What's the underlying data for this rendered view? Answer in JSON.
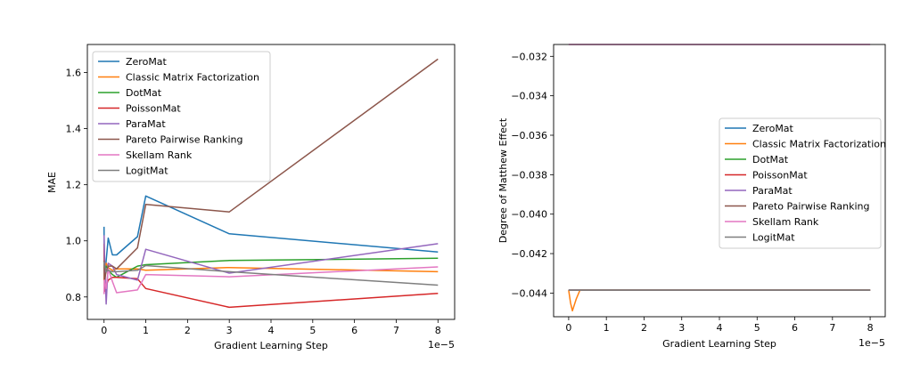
{
  "chart_data": [
    {
      "type": "line",
      "title": "",
      "xlabel": "Gradient Learning Step",
      "ylabel": "MAE",
      "x_offset_label": "1e−5",
      "xlim": [
        -0.4,
        8.4
      ],
      "ylim": [
        0.72,
        1.7
      ],
      "xticks": [
        0,
        1,
        2,
        3,
        4,
        5,
        6,
        7,
        8
      ],
      "yticks": [
        0.8,
        1.0,
        1.2,
        1.4,
        1.6
      ],
      "ytick_labels": [
        "0.8",
        "1.0",
        "1.2",
        "1.4",
        "1.6"
      ],
      "grid": false,
      "legend_position": "upper-left",
      "series": [
        {
          "name": "ZeroMat",
          "color": "#1f77b4",
          "x": [
            0,
            0.01,
            0.05,
            0.1,
            0.2,
            0.3,
            0.8,
            1,
            3,
            8
          ],
          "y": [
            1.05,
            0.84,
            0.93,
            1.01,
            0.95,
            0.95,
            1.015,
            1.16,
            1.025,
            0.96
          ]
        },
        {
          "name": "Classic Matrix Factorization",
          "color": "#ff7f0e",
          "x": [
            0,
            0.01,
            0.05,
            0.1,
            0.2,
            0.3,
            0.8,
            1,
            3,
            8
          ],
          "y": [
            0.86,
            0.89,
            0.92,
            0.905,
            0.895,
            0.9,
            0.9,
            0.895,
            0.905,
            0.89
          ]
        },
        {
          "name": "DotMat",
          "color": "#2ca02c",
          "x": [
            0,
            0.01,
            0.05,
            0.1,
            0.2,
            0.3,
            0.8,
            1,
            3,
            8
          ],
          "y": [
            0.915,
            0.9,
            0.91,
            0.895,
            0.88,
            0.87,
            0.91,
            0.915,
            0.93,
            0.938
          ]
        },
        {
          "name": "PoissonMat",
          "color": "#d62728",
          "x": [
            0,
            0.01,
            0.05,
            0.1,
            0.2,
            0.3,
            0.8,
            1,
            3,
            8
          ],
          "y": [
            0.99,
            0.82,
            0.84,
            0.86,
            0.87,
            0.87,
            0.865,
            0.83,
            0.763,
            0.813
          ]
        },
        {
          "name": "ParaMat",
          "color": "#9467bd",
          "x": [
            0,
            0.01,
            0.05,
            0.1,
            0.2,
            0.3,
            0.8,
            1,
            3,
            8
          ],
          "y": [
            1.02,
            0.95,
            0.775,
            0.92,
            0.91,
            0.88,
            0.86,
            0.97,
            0.885,
            0.99
          ]
        },
        {
          "name": "Pareto Pairwise Ranking",
          "color": "#8c564b",
          "x": [
            0,
            0.01,
            0.05,
            0.1,
            0.2,
            0.3,
            0.8,
            1,
            3,
            8
          ],
          "y": [
            0.93,
            0.86,
            0.89,
            0.91,
            0.91,
            0.9,
            0.975,
            1.13,
            1.103,
            1.648
          ]
        },
        {
          "name": "Skellam Rank",
          "color": "#e377c2",
          "x": [
            0,
            0.01,
            0.05,
            0.1,
            0.2,
            0.3,
            0.8,
            1,
            3,
            8
          ],
          "y": [
            0.81,
            0.86,
            0.83,
            0.9,
            0.855,
            0.815,
            0.825,
            0.88,
            0.872,
            0.907
          ]
        },
        {
          "name": "LogitMat",
          "color": "#7f7f7f",
          "x": [
            0,
            0.01,
            0.05,
            0.1,
            0.2,
            0.3,
            0.8,
            1,
            3,
            8
          ],
          "y": [
            0.925,
            0.91,
            0.89,
            0.895,
            0.89,
            0.89,
            0.895,
            0.912,
            0.89,
            0.842
          ]
        }
      ]
    },
    {
      "type": "line",
      "title": "",
      "xlabel": "Gradient Learning Step",
      "ylabel": "Degree of Matthew Effect",
      "x_offset_label": "1e−5",
      "xlim": [
        -0.4,
        8.4
      ],
      "ylim": [
        -0.0452,
        -0.0314
      ],
      "xticks": [
        0,
        1,
        2,
        3,
        4,
        5,
        6,
        7,
        8
      ],
      "yticks": [
        -0.044,
        -0.042,
        -0.04,
        -0.038,
        -0.036,
        -0.034,
        -0.032
      ],
      "ytick_labels": [
        "−0.044",
        "−0.042",
        "−0.040",
        "−0.038",
        "−0.036",
        "−0.034",
        "−0.032"
      ],
      "grid": false,
      "legend_position": "center-right",
      "series": [
        {
          "name": "ZeroMat",
          "color": "#1f77b4",
          "x": [
            0,
            0.01,
            0.05,
            0.1,
            0.2,
            0.3,
            0.8,
            1,
            3,
            8
          ],
          "y": [
            -0.04385,
            -0.04385,
            -0.04385,
            -0.04385,
            -0.04385,
            -0.04385,
            -0.04385,
            -0.04385,
            -0.04385,
            -0.04385
          ]
        },
        {
          "name": "Classic Matrix Factorization",
          "color": "#ff7f0e",
          "x": [
            0,
            0.05,
            0.1,
            0.2,
            0.3,
            0.8,
            1,
            3,
            8
          ],
          "y": [
            -0.04385,
            -0.0445,
            -0.0449,
            -0.0443,
            -0.04385,
            -0.04385,
            -0.04385,
            -0.04385,
            -0.04385
          ]
        },
        {
          "name": "DotMat",
          "color": "#2ca02c",
          "x": [
            0,
            0.01,
            0.05,
            0.1,
            0.2,
            0.3,
            0.8,
            1,
            3,
            8
          ],
          "y": [
            -0.04385,
            -0.04385,
            -0.04385,
            -0.04385,
            -0.04385,
            -0.04385,
            -0.04385,
            -0.04385,
            -0.04385,
            -0.04385
          ]
        },
        {
          "name": "PoissonMat",
          "color": "#d62728",
          "x": [
            0,
            0.01,
            0.05,
            0.1,
            0.2,
            0.3,
            0.8,
            1,
            3,
            8
          ],
          "y": [
            -0.04385,
            -0.04385,
            -0.04385,
            -0.04385,
            -0.04385,
            -0.04385,
            -0.04385,
            -0.04385,
            -0.04385,
            -0.04385
          ]
        },
        {
          "name": "ParaMat",
          "color": "#9467bd",
          "x": [
            0,
            0.01,
            0.05,
            0.1,
            0.2,
            0.3,
            0.8,
            1,
            3,
            8
          ],
          "y": [
            -0.04385,
            -0.04385,
            -0.04385,
            -0.04385,
            -0.04385,
            -0.04385,
            -0.04385,
            -0.04385,
            -0.04385,
            -0.04385
          ]
        },
        {
          "name": "Pareto Pairwise Ranking",
          "color": "#8c564b",
          "x": [
            0,
            0.01,
            0.05,
            0.1,
            0.2,
            0.3,
            0.8,
            1,
            3,
            8
          ],
          "y": [
            -0.04385,
            -0.04385,
            -0.04385,
            -0.04385,
            -0.04385,
            -0.04385,
            -0.04385,
            -0.04385,
            -0.04385,
            -0.04385
          ]
        },
        {
          "name": "Skellam Rank",
          "color": "#e377c2",
          "x": [
            0,
            0.01,
            0.05,
            0.1,
            0.2,
            0.3,
            0.8,
            1,
            3,
            8
          ],
          "y": [
            -0.0314,
            -0.0314,
            -0.0314,
            -0.0314,
            -0.0314,
            -0.0314,
            -0.0314,
            -0.0314,
            -0.0314,
            -0.0314
          ]
        },
        {
          "name": "LogitMat",
          "color": "#7f7f7f",
          "x": [
            0,
            0.01,
            0.05,
            0.1,
            0.2,
            0.3,
            0.8,
            1,
            3,
            8
          ],
          "y": [
            -0.04385,
            -0.04385,
            -0.04385,
            -0.04385,
            -0.04385,
            -0.04385,
            -0.04385,
            -0.04385,
            -0.04385,
            -0.04385
          ]
        }
      ]
    }
  ]
}
